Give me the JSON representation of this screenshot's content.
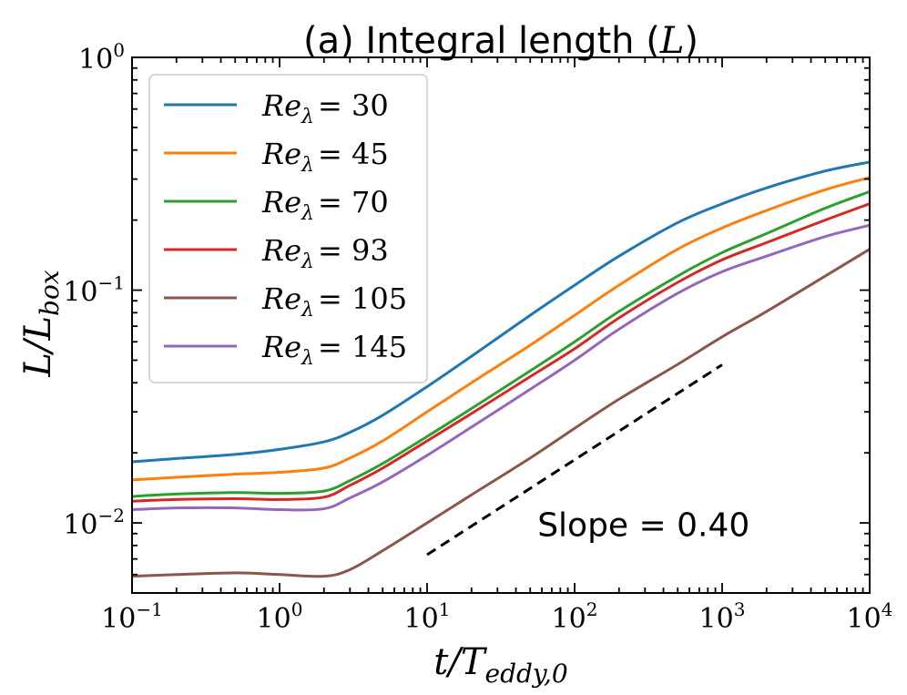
{
  "chart_data": {
    "type": "line",
    "title": "(a) Integral length (L)",
    "title_prefix": "(a) Integral length (",
    "title_symbol": "L",
    "title_suffix": ")",
    "xlabel": "t/T_eddy,0",
    "xlabel_parts": {
      "main": "t/T",
      "sub": "eddy,0"
    },
    "ylabel": "L/L_box",
    "ylabel_parts": {
      "main": "L/L",
      "sub": "box"
    },
    "x_scale": "log",
    "y_scale": "log",
    "xlim": [
      0.1,
      10000
    ],
    "ylim": [
      0.005,
      1
    ],
    "x_ticks": [
      {
        "value": 0.1,
        "base": "10",
        "exp": "−1"
      },
      {
        "value": 1,
        "base": "10",
        "exp": "0"
      },
      {
        "value": 10,
        "base": "10",
        "exp": "1"
      },
      {
        "value": 100,
        "base": "10",
        "exp": "2"
      },
      {
        "value": 1000,
        "base": "10",
        "exp": "3"
      },
      {
        "value": 10000,
        "base": "10",
        "exp": "4"
      }
    ],
    "y_ticks": [
      {
        "value": 0.01,
        "base": "10",
        "exp": "−2"
      },
      {
        "value": 0.1,
        "base": "10",
        "exp": "−1"
      },
      {
        "value": 1,
        "base": "10",
        "exp": "0"
      }
    ],
    "legend_position": "top-left",
    "x": [
      0.1,
      0.2,
      0.5,
      1,
      2,
      3,
      5,
      10,
      20,
      50,
      100,
      200,
      500,
      1000,
      2000,
      5000,
      10000
    ],
    "series": [
      {
        "name": "Re_λ = 30",
        "label_prefix": "Re",
        "label_sub": "λ",
        "label_value": "= 30",
        "color": "#1f77b4",
        "values": [
          0.0183,
          0.0189,
          0.0197,
          0.0207,
          0.0223,
          0.0245,
          0.029,
          0.0385,
          0.052,
          0.078,
          0.105,
          0.14,
          0.195,
          0.235,
          0.275,
          0.325,
          0.355
        ]
      },
      {
        "name": "Re_λ = 45",
        "label_prefix": "Re",
        "label_sub": "λ",
        "label_value": "= 45",
        "color": "#ff7f0e",
        "values": [
          0.0153,
          0.0157,
          0.0162,
          0.0165,
          0.0172,
          0.019,
          0.0225,
          0.03,
          0.04,
          0.058,
          0.078,
          0.105,
          0.15,
          0.185,
          0.22,
          0.27,
          0.305
        ]
      },
      {
        "name": "Re_λ = 70",
        "label_prefix": "Re",
        "label_sub": "λ",
        "label_value": "= 70",
        "color": "#2ca02c",
        "values": [
          0.013,
          0.0133,
          0.0135,
          0.0134,
          0.0137,
          0.0152,
          0.018,
          0.0235,
          0.031,
          0.045,
          0.06,
          0.081,
          0.115,
          0.145,
          0.175,
          0.225,
          0.265
        ]
      },
      {
        "name": "Re_λ = 93",
        "label_prefix": "Re",
        "label_sub": "λ",
        "label_value": "= 93",
        "color": "#d62728",
        "values": [
          0.0124,
          0.0126,
          0.0127,
          0.0126,
          0.0129,
          0.0145,
          0.0172,
          0.0225,
          0.0295,
          0.0425,
          0.056,
          0.076,
          0.108,
          0.135,
          0.16,
          0.2,
          0.235
        ]
      },
      {
        "name": "Re_λ = 105",
        "label_prefix": "Re",
        "label_sub": "λ",
        "label_value": "= 105",
        "color": "#8c564b",
        "values": [
          0.0059,
          0.006,
          0.0061,
          0.006,
          0.0059,
          0.0063,
          0.0076,
          0.01,
          0.0132,
          0.019,
          0.0255,
          0.034,
          0.048,
          0.063,
          0.081,
          0.115,
          0.15
        ]
      },
      {
        "name": "Re_λ = 145",
        "label_prefix": "Re",
        "label_sub": "λ",
        "label_value": "= 145",
        "color": "#9467bd",
        "values": [
          0.0114,
          0.0116,
          0.0116,
          0.0114,
          0.0115,
          0.0128,
          0.015,
          0.0195,
          0.0258,
          0.0375,
          0.05,
          0.068,
          0.097,
          0.12,
          0.14,
          0.17,
          0.19
        ]
      }
    ],
    "reference_line": {
      "x": [
        10,
        1000
      ],
      "y": [
        0.0073,
        0.0478
      ],
      "slope": 0.4,
      "style": "dashed",
      "color": "#000000"
    },
    "annotation": {
      "text": "Slope = 0.40",
      "x": 56,
      "y": 0.0088
    }
  }
}
